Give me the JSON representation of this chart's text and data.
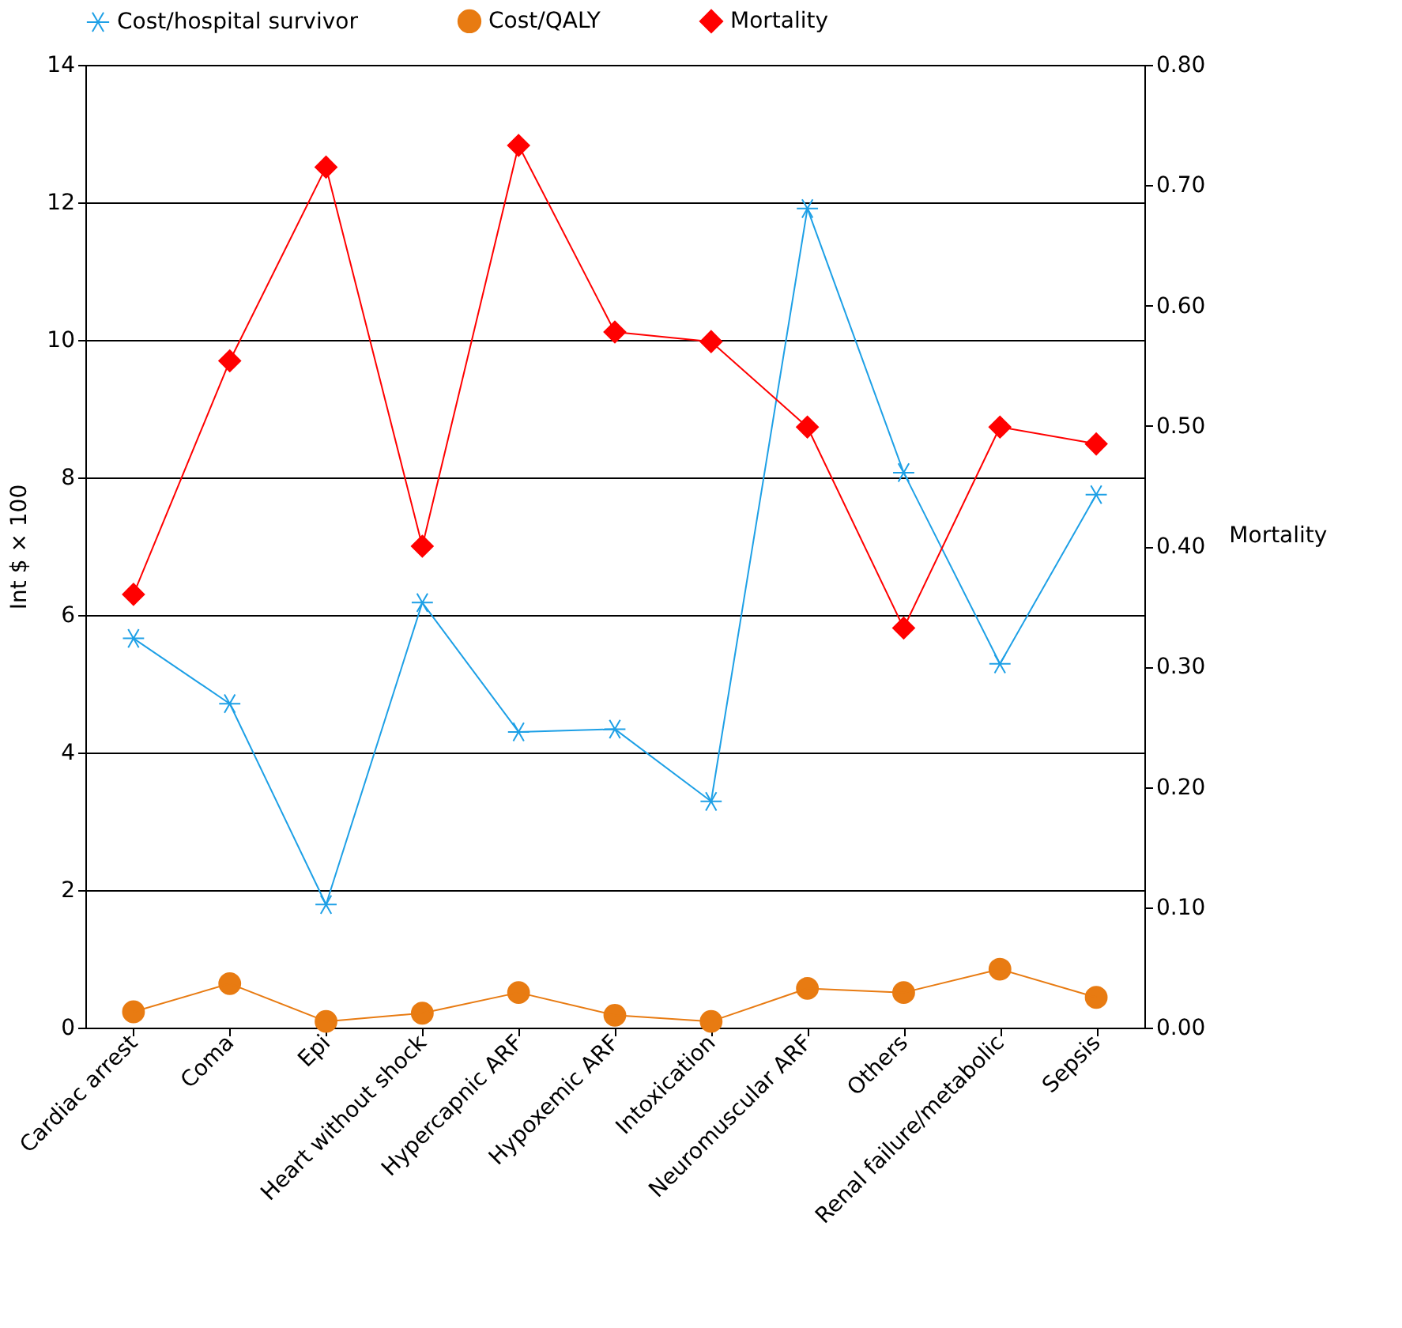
{
  "chart_data": {
    "type": "line",
    "categories": [
      "Cardiac arrest",
      "Coma",
      "Epi",
      "Heart without shock",
      "Hypercapnic ARF",
      "Hypoxemic ARF",
      "Intoxication",
      "Neuromuscular ARF",
      "Others",
      "Renal failure/metabolic",
      "Sepsis"
    ],
    "series": [
      {
        "name": "Cost/hospital survivor",
        "color": "#1ea0e6",
        "marker": "cross",
        "values": [
          5.66,
          4.71,
          1.79,
          6.18,
          4.3,
          4.34,
          3.29,
          11.91,
          8.07,
          5.29,
          7.75
        ]
      },
      {
        "name": "Cost/QALY",
        "color": "#e87b12",
        "marker": "circle",
        "values": [
          0.23,
          0.64,
          0.09,
          0.21,
          0.51,
          0.18,
          0.09,
          0.57,
          0.51,
          0.85,
          0.44
        ]
      },
      {
        "name": "Mortality",
        "color": "#ff0000",
        "marker": "diamond",
        "axis": "y2",
        "values": [
          0.36,
          0.554,
          0.715,
          0.4,
          0.733,
          0.578,
          0.57,
          0.499,
          0.332,
          0.499,
          0.485
        ]
      }
    ],
    "ylabel": "Int $ × 100",
    "y2label": "Mortality",
    "ylim": [
      0,
      14
    ],
    "yticks": [
      0,
      2,
      4,
      6,
      8,
      10,
      12,
      14
    ],
    "y2lim": [
      0,
      0.8
    ],
    "y2ticks": [
      {
        "value": 0,
        "label": "0.00"
      },
      {
        "value": 0.1,
        "label": "0.10"
      },
      {
        "value": 0.2,
        "label": "0.20"
      },
      {
        "value": 0.3,
        "label": "0.30"
      },
      {
        "value": 0.4,
        "label": "0.40"
      },
      {
        "value": 0.5,
        "label": "0.50"
      },
      {
        "value": 0.6,
        "label": "0.60"
      },
      {
        "value": 0.7,
        "label": "0.70"
      },
      {
        "value": 0.8,
        "label": "0.80"
      }
    ],
    "grid": "y",
    "legend": "top",
    "line_style": "solid"
  }
}
